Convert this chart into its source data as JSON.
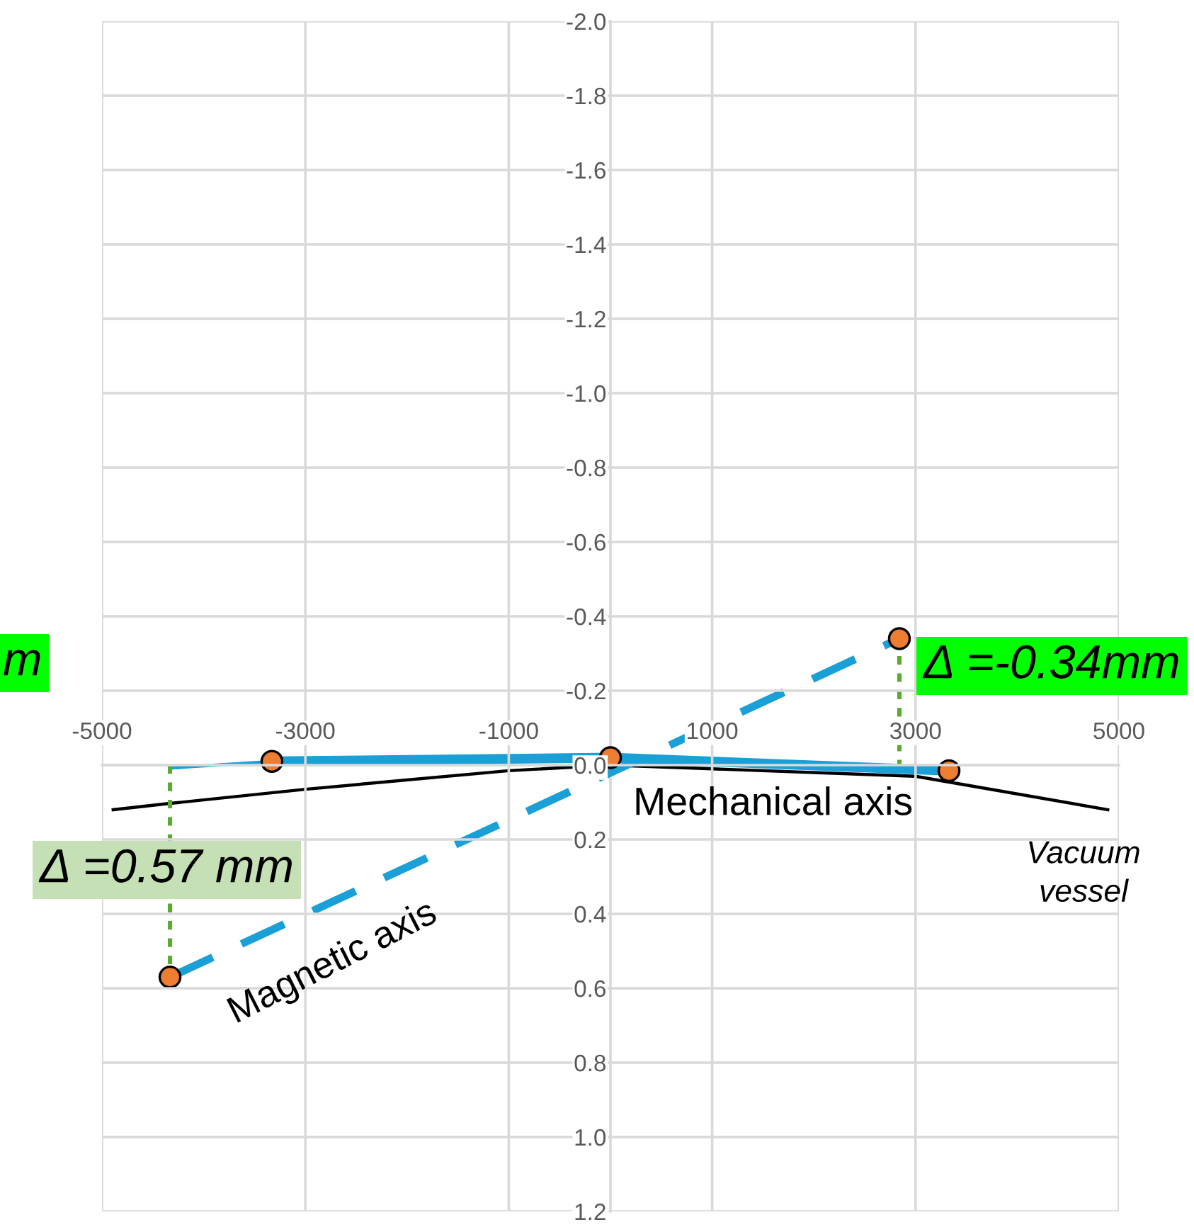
{
  "chart_data": {
    "type": "line",
    "xlim": [
      -5000,
      5000
    ],
    "xticks": [
      -5000,
      -3000,
      -1000,
      1000,
      3000,
      5000
    ],
    "ylim": [
      1.2,
      -2.0
    ],
    "yticks": [
      {
        "value": -2.0,
        "label": "-2.0"
      },
      {
        "value": -1.8,
        "label": "-1.8"
      },
      {
        "value": -1.6,
        "label": "-1.6"
      },
      {
        "value": -1.4,
        "label": "-1.4"
      },
      {
        "value": -1.2,
        "label": "-1.2"
      },
      {
        "value": -1.0,
        "label": "-1.0"
      },
      {
        "value": -0.8,
        "label": "-0.8"
      },
      {
        "value": -0.6,
        "label": "-0.6"
      },
      {
        "value": -0.4,
        "label": "-0.4"
      },
      {
        "value": -0.2,
        "label": "-0.2"
      },
      {
        "value": 0.0,
        "label": "0.0"
      },
      {
        "value": 0.2,
        "label": "0.2"
      },
      {
        "value": 0.4,
        "label": "0.4"
      },
      {
        "value": 0.6,
        "label": "0.6"
      },
      {
        "value": 0.8,
        "label": "0.8"
      },
      {
        "value": 1.0,
        "label": "1.0"
      },
      {
        "value": 1.2,
        "label": "1.2"
      }
    ],
    "grid": true,
    "marker": "none",
    "line_style": "solid",
    "series": [
      {
        "color": "#000000",
        "x": [
          -4890,
          -4331,
          -3000,
          -1000,
          0,
          1000,
          3000,
          4890
        ],
        "values": [
          0.12,
          0.103,
          0.065,
          0.015,
          0.0,
          0.01,
          0.03,
          0.12
        ]
      },
      {
        "color": "#1a9fd6",
        "x": [
          -4331,
          -3329
        ],
        "values": [
          0.008,
          -0.01
        ]
      },
      {
        "color": "#1a9fd6",
        "x": [
          -3329,
          0,
          3329
        ],
        "values": [
          -0.01,
          -0.02,
          0.015
        ]
      },
      {
        "color": "#1a9fd6",
        "line_style": "dashed",
        "x": [
          -4331,
          2841
        ],
        "values": [
          0.57,
          -0.34
        ]
      },
      {
        "color": "#5aaa32",
        "line_style": "dotted",
        "x": [
          -4331,
          -4331
        ],
        "values": [
          0.0,
          0.57
        ]
      },
      {
        "color": "#5aaa32",
        "line_style": "dotted",
        "x": [
          2841,
          2841
        ],
        "values": [
          -0.34,
          0.0
        ]
      },
      {
        "type": "scatter",
        "marker": "circle",
        "color": "#ed7d31",
        "x": [
          -4331,
          -3329,
          0,
          2841,
          3329
        ],
        "values": [
          0.57,
          -0.01,
          -0.02,
          -0.34,
          0.015
        ]
      }
    ],
    "annotations": [
      "Mechanical axis",
      "Magnetic axis",
      "Vacuum\nvessel",
      "Δ =0.57 mm",
      "Δ =-0.34mm",
      "m"
    ]
  }
}
